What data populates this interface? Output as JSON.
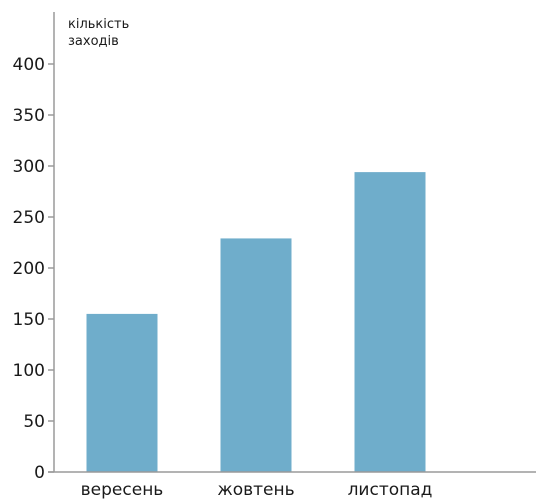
{
  "chart_data": {
    "type": "bar",
    "ylabel_lines": [
      "кількість",
      "заходів"
    ],
    "categories": [
      "вересень",
      "жовтень",
      "листопад"
    ],
    "values": [
      155,
      229,
      294
    ],
    "ylim": [
      0,
      400
    ],
    "yticks": [
      0,
      50,
      100,
      150,
      200,
      250,
      300,
      350,
      400
    ],
    "grid": false,
    "bar_color": "#6fadcb",
    "axis_color": "#9a9a9a"
  }
}
